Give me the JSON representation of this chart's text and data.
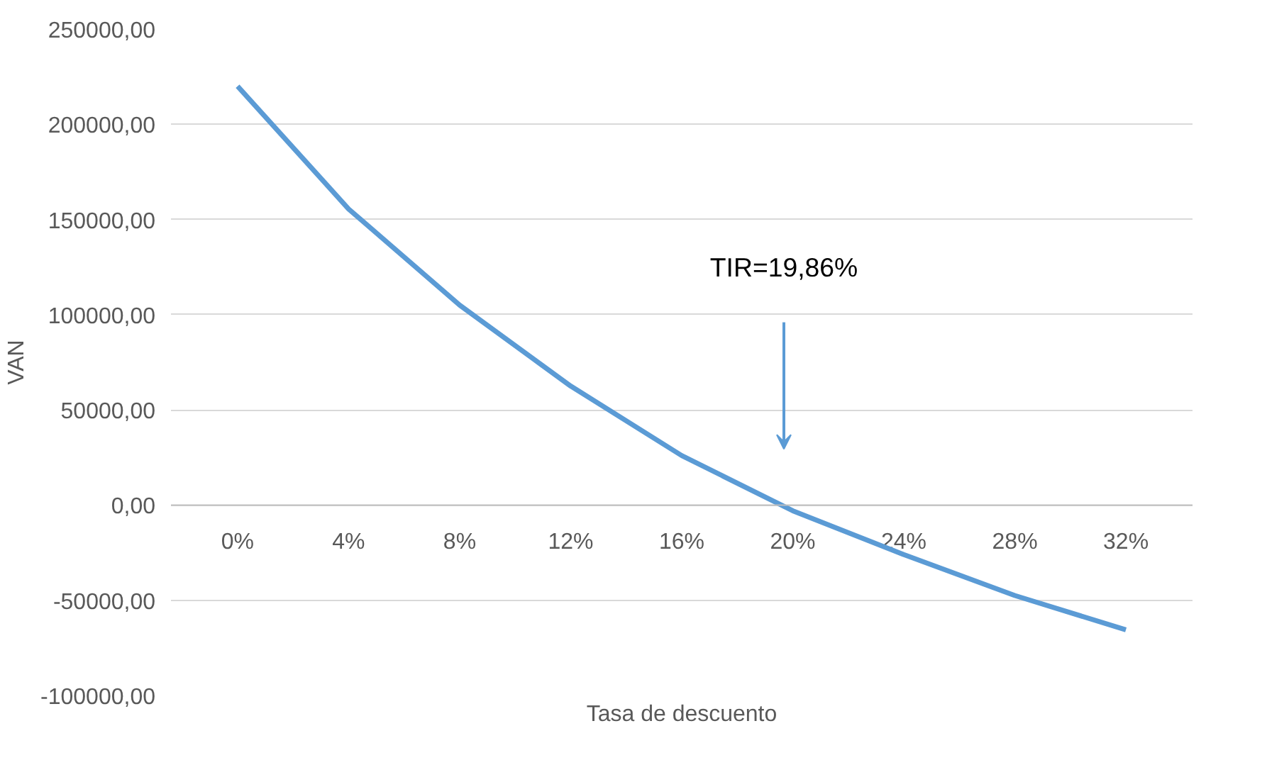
{
  "chart_data": {
    "type": "line",
    "xlabel": "Tasa de descuento",
    "ylabel": "VAN",
    "categories": [
      "0%",
      "4%",
      "8%",
      "12%",
      "16%",
      "20%",
      "24%",
      "28%",
      "32%"
    ],
    "series": [
      {
        "color": "#5b9bd5",
        "values": [
          220000,
          155500,
          105000,
          62500,
          26000,
          -3000,
          -26000,
          -47500,
          -65500
        ]
      }
    ],
    "ylim": [
      -100000,
      250000
    ],
    "yticks": [
      {
        "value": -100000,
        "label": "-100000,00"
      },
      {
        "value": -50000,
        "label": "-50000,00"
      },
      {
        "value": 0,
        "label": "0,00"
      },
      {
        "value": 50000,
        "label": "50000,00"
      },
      {
        "value": 100000,
        "label": "100000,00"
      },
      {
        "value": 150000,
        "label": "150000,00"
      },
      {
        "value": 200000,
        "label": "200000,00"
      },
      {
        "value": 250000,
        "label": "250000,00"
      }
    ],
    "grid": "y",
    "marker": "none",
    "line_style": "solid",
    "annotations": [
      "TIR=19,86%"
    ]
  }
}
